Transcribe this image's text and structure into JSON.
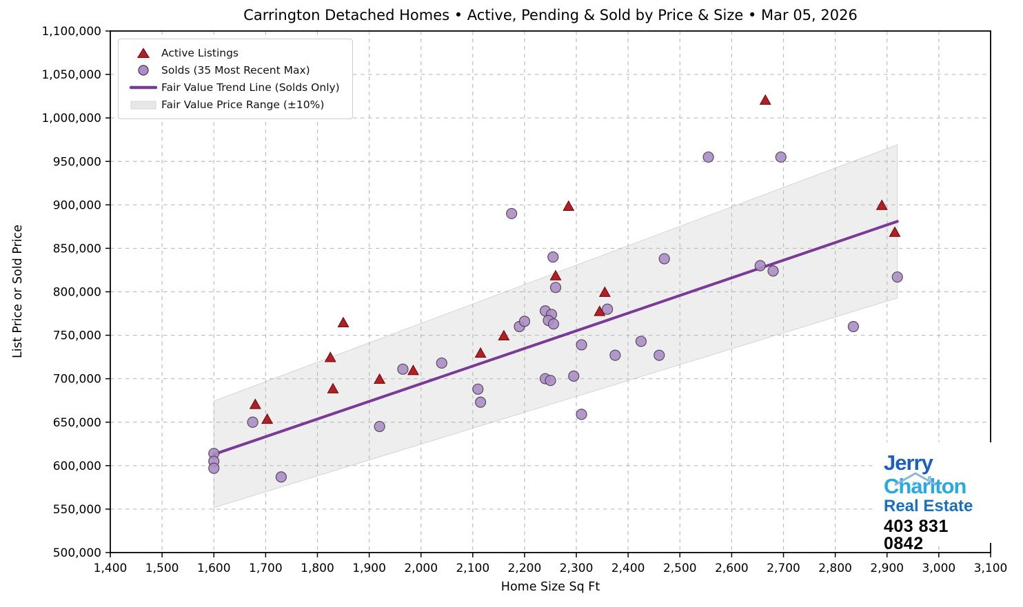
{
  "title": "Carrington Detached Homes • Active, Pending & Sold by Price & Size • Mar 05, 2026",
  "legend": {
    "items": [
      {
        "label": "Active Listings",
        "marker": "triangle"
      },
      {
        "label": "Solds (35 Most Recent Max)",
        "marker": "circle"
      },
      {
        "label": "Fair Value Trend Line (Solds Only)",
        "marker": "line"
      },
      {
        "label": "Fair Value Price Range (±10%)",
        "marker": "patch"
      }
    ]
  },
  "logo": {
    "line1": "Jerry",
    "line2": "Charlton",
    "line3": "Real Estate",
    "phone": "403 831 0842"
  },
  "colors": {
    "active_fill": "#b22025",
    "active_edge": "#701013",
    "sold_fill": "#ab8dc7",
    "sold_edge": "#3f3744",
    "trend": "#7a3b96",
    "band_fill": "#e8e8e8",
    "band_edge": "#d5d5d5",
    "grid": "#bcbcbc",
    "spine": "#000000",
    "logo_jerry": "#1b5fc1",
    "logo_charlton": "#2aa9e0",
    "logo_realestate": "#1c6fb8"
  },
  "chart_data": {
    "type": "scatter",
    "title": "Carrington Detached Homes • Active, Pending & Sold by Price & Size • Mar 05, 2026",
    "xlabel": "Home Size Sq Ft",
    "ylabel": "List Price or Sold Price",
    "xlim": [
      1400,
      3100
    ],
    "ylim": [
      500000,
      1100000
    ],
    "grid": "dashed",
    "legend_position": "upper-left",
    "x_ticks": [
      1400,
      1500,
      1600,
      1700,
      1800,
      1900,
      2000,
      2100,
      2200,
      2300,
      2400,
      2500,
      2600,
      2700,
      2800,
      2900,
      3000,
      3100
    ],
    "x_tick_labels": [
      "1,400",
      "1,500",
      "1,600",
      "1,700",
      "1,800",
      "1,900",
      "2,000",
      "2,100",
      "2,200",
      "2,300",
      "2,400",
      "2,500",
      "2,600",
      "2,700",
      "2,800",
      "2,900",
      "3,000",
      "3,100"
    ],
    "y_ticks": [
      500000,
      550000,
      600000,
      650000,
      700000,
      750000,
      800000,
      850000,
      900000,
      950000,
      1000000,
      1050000,
      1100000
    ],
    "y_tick_labels": [
      "500,000",
      "550,000",
      "600,000",
      "650,000",
      "700,000",
      "750,000",
      "800,000",
      "850,000",
      "900,000",
      "950,000",
      "1,000,000",
      "1,050,000",
      "1,100,000"
    ],
    "series": [
      {
        "name": "Active Listings",
        "marker": "triangle",
        "points": [
          [
            1680,
            670000
          ],
          [
            1703,
            653000
          ],
          [
            1825,
            724000
          ],
          [
            1830,
            688000
          ],
          [
            1850,
            764000
          ],
          [
            1920,
            699000
          ],
          [
            1985,
            709000
          ],
          [
            2115,
            729000
          ],
          [
            2160,
            749000
          ],
          [
            2260,
            818000
          ],
          [
            2285,
            898000
          ],
          [
            2345,
            777000
          ],
          [
            2355,
            799000
          ],
          [
            2665,
            1020000
          ],
          [
            2890,
            899000
          ],
          [
            2915,
            868000
          ]
        ]
      },
      {
        "name": "Solds (35 Most Recent Max)",
        "marker": "circle",
        "points": [
          [
            1600,
            614000
          ],
          [
            1600,
            605000
          ],
          [
            1600,
            597000
          ],
          [
            1675,
            650000
          ],
          [
            1730,
            587000
          ],
          [
            1920,
            645000
          ],
          [
            1965,
            711000
          ],
          [
            2040,
            718000
          ],
          [
            2110,
            688000
          ],
          [
            2115,
            673000
          ],
          [
            2175,
            890000
          ],
          [
            2190,
            760000
          ],
          [
            2200,
            766000
          ],
          [
            2240,
            778000
          ],
          [
            2252,
            774000
          ],
          [
            2246,
            767000
          ],
          [
            2256,
            763000
          ],
          [
            2240,
            700000
          ],
          [
            2250,
            698000
          ],
          [
            2255,
            840000
          ],
          [
            2260,
            805000
          ],
          [
            2295,
            703000
          ],
          [
            2310,
            739000
          ],
          [
            2310,
            659000
          ],
          [
            2360,
            780000
          ],
          [
            2375,
            727000
          ],
          [
            2425,
            743000
          ],
          [
            2460,
            727000
          ],
          [
            2470,
            838000
          ],
          [
            2555,
            955000
          ],
          [
            2655,
            830000
          ],
          [
            2680,
            824000
          ],
          [
            2695,
            955000
          ],
          [
            2835,
            760000
          ],
          [
            2920,
            817000
          ]
        ]
      }
    ],
    "trend_line": {
      "name": "Fair Value Trend Line (Solds Only)",
      "points": [
        [
          1600,
          613000
        ],
        [
          2920,
          881000
        ]
      ]
    },
    "band": {
      "name": "Fair Value Price Range (±10%)",
      "upper": [
        [
          1600,
          674300
        ],
        [
          2920,
          969100
        ]
      ],
      "lower": [
        [
          1600,
          551700
        ],
        [
          2920,
          792900
        ]
      ]
    }
  }
}
